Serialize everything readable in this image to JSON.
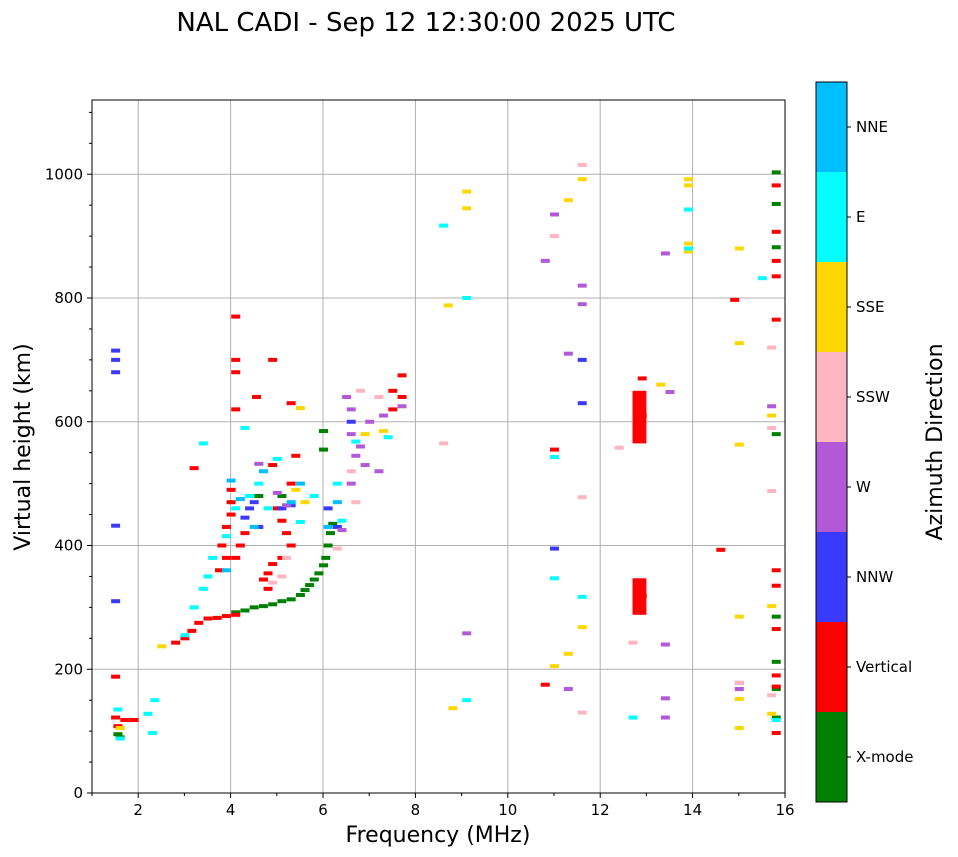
{
  "chart_data": {
    "type": "scatter",
    "title": "NAL CADI - Sep 12 12:30:00 2025 UTC",
    "xlabel": "Frequency (MHz)",
    "ylabel": "Virtual height (km)",
    "xlim": [
      1,
      16
    ],
    "ylim": [
      0,
      1120
    ],
    "xticks": [
      2,
      4,
      6,
      8,
      10,
      12,
      14,
      16
    ],
    "yticks": [
      0,
      200,
      400,
      600,
      800,
      1000
    ],
    "grid": true,
    "colorbar": {
      "label": "Azimuth Direction",
      "categories": [
        "X-mode",
        "Vertical",
        "NNW",
        "W",
        "SSW",
        "SSE",
        "E",
        "NNE"
      ],
      "colors": [
        "#008000",
        "#ff0000",
        "#3a3aff",
        "#b159d6",
        "#ffb6c1",
        "#ffd700",
        "#00ffff",
        "#00bfff"
      ]
    },
    "series": [
      {
        "name": "X-mode",
        "points": [
          [
            1.55,
            95
          ],
          [
            1.6,
            90
          ],
          [
            4.1,
            292
          ],
          [
            4.3,
            295
          ],
          [
            4.5,
            300
          ],
          [
            4.7,
            302
          ],
          [
            4.9,
            305
          ],
          [
            5.1,
            310
          ],
          [
            5.3,
            313
          ],
          [
            5.5,
            320
          ],
          [
            5.6,
            328
          ],
          [
            5.7,
            336
          ],
          [
            5.8,
            345
          ],
          [
            5.9,
            355
          ],
          [
            6.0,
            368
          ],
          [
            6.05,
            380
          ],
          [
            6.1,
            400
          ],
          [
            6.15,
            420
          ],
          [
            6.2,
            435
          ],
          [
            5.1,
            480
          ],
          [
            4.6,
            480
          ],
          [
            6.0,
            585
          ],
          [
            6.0,
            555
          ],
          [
            15.8,
            1003
          ],
          [
            15.8,
            952
          ],
          [
            15.8,
            882
          ],
          [
            15.8,
            580
          ],
          [
            15.8,
            285
          ],
          [
            15.8,
            212
          ],
          [
            15.8,
            168
          ],
          [
            15.8,
            122
          ]
        ]
      },
      {
        "name": "Vertical",
        "points": [
          [
            1.5,
            188
          ],
          [
            1.5,
            122
          ],
          [
            1.55,
            108
          ],
          [
            1.7,
            118
          ],
          [
            1.9,
            118
          ],
          [
            2.8,
            243
          ],
          [
            3.0,
            250
          ],
          [
            3.15,
            262
          ],
          [
            3.3,
            275
          ],
          [
            3.5,
            282
          ],
          [
            3.7,
            283
          ],
          [
            3.9,
            286
          ],
          [
            4.1,
            288
          ],
          [
            3.8,
            400
          ],
          [
            3.9,
            430
          ],
          [
            4.0,
            450
          ],
          [
            4.0,
            470
          ],
          [
            4.0,
            490
          ],
          [
            4.1,
            380
          ],
          [
            4.2,
            400
          ],
          [
            4.3,
            420
          ],
          [
            3.9,
            380
          ],
          [
            3.75,
            360
          ],
          [
            4.1,
            620
          ],
          [
            4.1,
            700
          ],
          [
            4.1,
            680
          ],
          [
            4.1,
            770
          ],
          [
            4.9,
            700
          ],
          [
            4.55,
            640
          ],
          [
            5.3,
            630
          ],
          [
            4.9,
            530
          ],
          [
            5.0,
            460
          ],
          [
            5.1,
            440
          ],
          [
            5.2,
            420
          ],
          [
            5.3,
            400
          ],
          [
            5.1,
            380
          ],
          [
            4.9,
            370
          ],
          [
            4.8,
            355
          ],
          [
            4.7,
            345
          ],
          [
            4.8,
            330
          ],
          [
            5.3,
            500
          ],
          [
            5.4,
            545
          ],
          [
            3.2,
            525
          ],
          [
            7.5,
            650
          ],
          [
            7.7,
            675
          ],
          [
            7.7,
            640
          ],
          [
            7.5,
            620
          ],
          [
            10.8,
            175
          ],
          [
            11.0,
            555
          ],
          [
            12.9,
            670
          ],
          [
            12.9,
            610
          ],
          [
            12.9,
            318
          ],
          [
            14.6,
            393
          ],
          [
            14.9,
            797
          ],
          [
            15.8,
            982
          ],
          [
            15.8,
            907
          ],
          [
            15.8,
            860
          ],
          [
            15.8,
            835
          ],
          [
            15.8,
            765
          ],
          [
            15.8,
            360
          ],
          [
            15.8,
            335
          ],
          [
            15.8,
            265
          ],
          [
            15.8,
            190
          ],
          [
            15.8,
            172
          ],
          [
            15.8,
            97
          ]
        ]
      },
      {
        "name": "NNW",
        "points": [
          [
            1.5,
            715
          ],
          [
            1.5,
            700
          ],
          [
            1.5,
            680
          ],
          [
            1.5,
            432
          ],
          [
            1.5,
            310
          ],
          [
            4.3,
            445
          ],
          [
            4.4,
            460
          ],
          [
            4.5,
            470
          ],
          [
            4.6,
            430
          ],
          [
            5.1,
            460
          ],
          [
            5.3,
            465
          ],
          [
            6.1,
            460
          ],
          [
            6.3,
            430
          ],
          [
            6.6,
            600
          ],
          [
            11.0,
            395
          ],
          [
            11.6,
            630
          ],
          [
            11.6,
            700
          ]
        ]
      },
      {
        "name": "W",
        "points": [
          [
            6.5,
            640
          ],
          [
            6.6,
            620
          ],
          [
            6.6,
            580
          ],
          [
            6.7,
            545
          ],
          [
            6.6,
            500
          ],
          [
            6.8,
            560
          ],
          [
            6.9,
            530
          ],
          [
            7.0,
            600
          ],
          [
            6.4,
            425
          ],
          [
            7.2,
            520
          ],
          [
            7.3,
            610
          ],
          [
            7.7,
            625
          ],
          [
            4.6,
            532
          ],
          [
            5.0,
            485
          ],
          [
            5.2,
            465
          ],
          [
            9.1,
            258
          ],
          [
            10.8,
            860
          ],
          [
            11.0,
            935
          ],
          [
            11.3,
            710
          ],
          [
            11.3,
            168
          ],
          [
            11.6,
            820
          ],
          [
            11.6,
            790
          ],
          [
            13.4,
            872
          ],
          [
            13.5,
            648
          ],
          [
            13.4,
            240
          ],
          [
            13.4,
            153
          ],
          [
            13.4,
            122
          ],
          [
            15.0,
            178
          ],
          [
            15.0,
            168
          ],
          [
            15.7,
            625
          ]
        ]
      },
      {
        "name": "SSW",
        "points": [
          [
            6.8,
            650
          ],
          [
            7.2,
            640
          ],
          [
            6.6,
            520
          ],
          [
            6.7,
            470
          ],
          [
            6.3,
            395
          ],
          [
            5.2,
            380
          ],
          [
            5.1,
            350
          ],
          [
            4.9,
            340
          ],
          [
            8.6,
            565
          ],
          [
            11.0,
            900
          ],
          [
            11.6,
            1015
          ],
          [
            11.6,
            478
          ],
          [
            11.6,
            130
          ],
          [
            12.7,
            243
          ],
          [
            12.4,
            558
          ],
          [
            15.7,
            720
          ],
          [
            15.7,
            590
          ],
          [
            15.7,
            488
          ],
          [
            15.7,
            158
          ],
          [
            15.0,
            178
          ]
        ]
      },
      {
        "name": "SSE",
        "points": [
          [
            5.6,
            470
          ],
          [
            5.4,
            490
          ],
          [
            5.5,
            622
          ],
          [
            6.9,
            580
          ],
          [
            7.3,
            585
          ],
          [
            2.5,
            237
          ],
          [
            1.6,
            105
          ],
          [
            8.7,
            788
          ],
          [
            8.8,
            137
          ],
          [
            9.1,
            972
          ],
          [
            9.1,
            945
          ],
          [
            11.0,
            205
          ],
          [
            11.3,
            225
          ],
          [
            11.3,
            958
          ],
          [
            11.6,
            992
          ],
          [
            11.6,
            268
          ],
          [
            13.3,
            660
          ],
          [
            13.9,
            992
          ],
          [
            13.9,
            982
          ],
          [
            13.9,
            888
          ],
          [
            13.9,
            875
          ],
          [
            15.0,
            880
          ],
          [
            15.0,
            727
          ],
          [
            15.0,
            563
          ],
          [
            15.0,
            285
          ],
          [
            15.0,
            152
          ],
          [
            15.0,
            105
          ],
          [
            15.7,
            610
          ],
          [
            15.7,
            302
          ],
          [
            15.7,
            128
          ]
        ]
      },
      {
        "name": "E",
        "points": [
          [
            1.55,
            135
          ],
          [
            1.6,
            88
          ],
          [
            2.2,
            128
          ],
          [
            2.3,
            97
          ],
          [
            2.35,
            150
          ],
          [
            3.0,
            255
          ],
          [
            3.2,
            300
          ],
          [
            3.4,
            330
          ],
          [
            3.5,
            350
          ],
          [
            3.6,
            380
          ],
          [
            3.9,
            415
          ],
          [
            4.3,
            590
          ],
          [
            4.1,
            460
          ],
          [
            4.4,
            480
          ],
          [
            4.6,
            500
          ],
          [
            4.8,
            460
          ],
          [
            5.0,
            540
          ],
          [
            5.5,
            438
          ],
          [
            5.8,
            480
          ],
          [
            6.3,
            500
          ],
          [
            6.4,
            440
          ],
          [
            6.7,
            568
          ],
          [
            7.4,
            575
          ],
          [
            8.6,
            917
          ],
          [
            9.1,
            800
          ],
          [
            9.1,
            150
          ],
          [
            11.0,
            543
          ],
          [
            11.0,
            347
          ],
          [
            11.6,
            317
          ],
          [
            12.7,
            122
          ],
          [
            13.9,
            943
          ],
          [
            13.9,
            880
          ],
          [
            15.5,
            832
          ],
          [
            15.8,
            118
          ],
          [
            3.4,
            565
          ]
        ]
      },
      {
        "name": "NNE",
        "points": [
          [
            4.0,
            505
          ],
          [
            4.2,
            475
          ],
          [
            4.5,
            430
          ],
          [
            4.7,
            520
          ],
          [
            5.3,
            470
          ],
          [
            5.5,
            500
          ],
          [
            6.1,
            430
          ],
          [
            6.3,
            470
          ],
          [
            3.9,
            360
          ]
        ]
      }
    ],
    "blocks": [
      {
        "category": "Vertical",
        "x0": 12.7,
        "x1": 13.0,
        "y0": 565,
        "y1": 650
      },
      {
        "category": "Vertical",
        "x0": 12.7,
        "x1": 13.0,
        "y0": 288,
        "y1": 347
      }
    ]
  }
}
